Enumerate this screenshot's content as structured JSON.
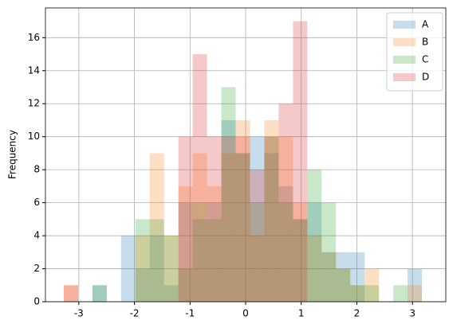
{
  "chart_data": {
    "type": "histogram",
    "ylabel": "Frequency",
    "bins": [
      -3.27,
      -3.012,
      -2.755,
      -2.497,
      -2.24,
      -1.982,
      -1.724,
      -1.467,
      -1.209,
      -0.952,
      -0.694,
      -0.436,
      -0.179,
      0.079,
      0.336,
      0.594,
      0.852,
      1.109,
      1.367,
      1.624,
      1.882,
      2.14,
      2.397,
      2.655,
      2.912,
      3.17
    ],
    "series": [
      {
        "name": "A",
        "color": "#1f77b4",
        "values": [
          0,
          0,
          1,
          0,
          4,
          2,
          4,
          1,
          6,
          5,
          6,
          11,
          9,
          10,
          9,
          7,
          5,
          6,
          3,
          3,
          3,
          0,
          0,
          0,
          2
        ]
      },
      {
        "name": "B",
        "color": "#ff7f0e",
        "values": [
          1,
          0,
          0,
          0,
          0,
          4,
          9,
          4,
          7,
          9,
          7,
          9,
          11,
          4,
          11,
          10,
          6,
          4,
          3,
          2,
          1,
          2,
          0,
          0,
          1
        ]
      },
      {
        "name": "C",
        "color": "#2ca02c",
        "values": [
          0,
          0,
          1,
          0,
          0,
          5,
          5,
          4,
          2,
          6,
          5,
          13,
          9,
          6,
          10,
          6,
          5,
          8,
          6,
          2,
          1,
          1,
          0,
          1,
          0
        ]
      },
      {
        "name": "D",
        "color": "#d62728",
        "values": [
          1,
          0,
          0,
          0,
          0,
          0,
          0,
          0,
          10,
          15,
          10,
          10,
          10,
          8,
          10,
          12,
          17,
          0,
          0,
          0,
          0,
          0,
          0,
          0,
          0
        ]
      }
    ],
    "alpha": 0.25,
    "xlim": [
      -3.6,
      3.6
    ],
    "ylim": [
      0,
      17.8
    ],
    "xticks": [
      -3,
      -2,
      -1,
      0,
      1,
      2,
      3
    ],
    "yticks": [
      0,
      2,
      4,
      6,
      8,
      10,
      12,
      14,
      16
    ],
    "grid": true,
    "legend": "upper right"
  }
}
